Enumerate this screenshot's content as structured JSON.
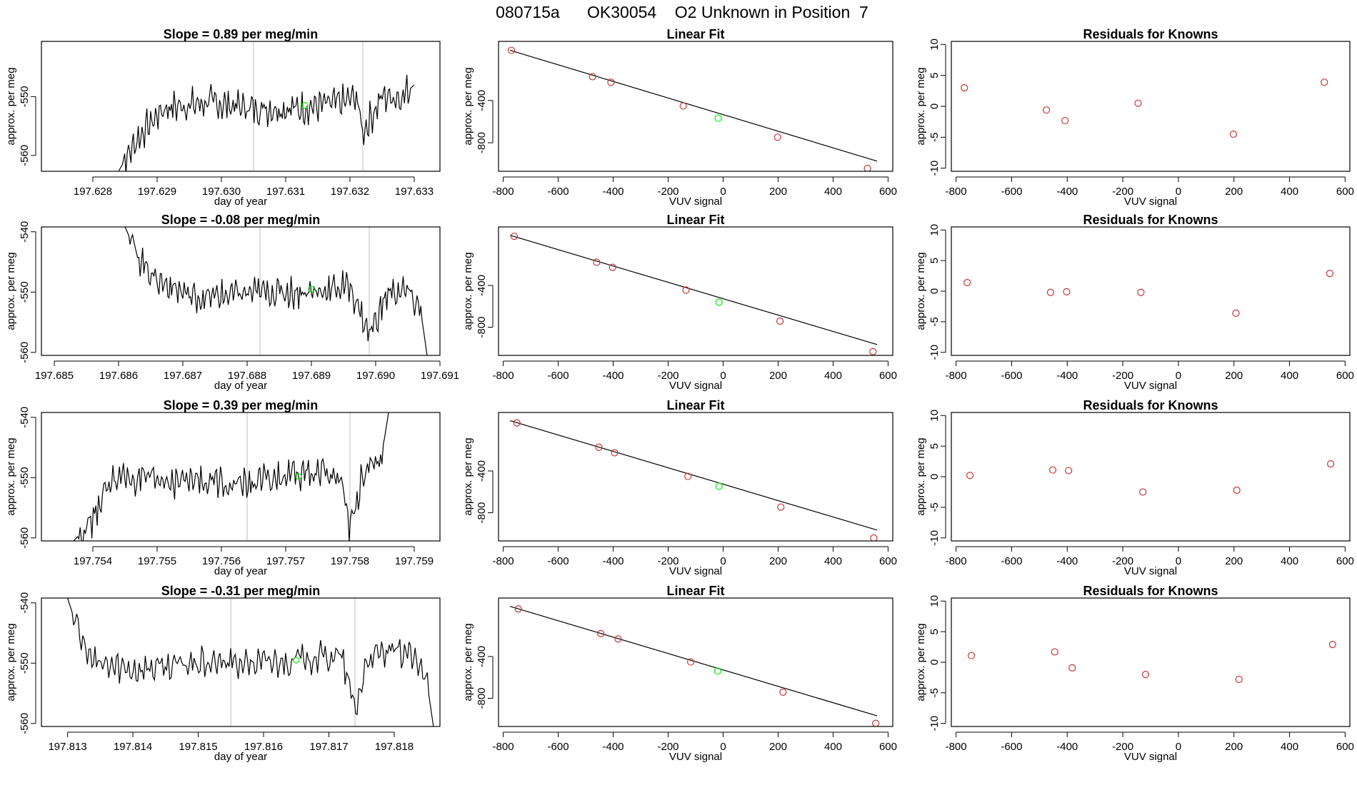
{
  "figure_title": "080715a      OK30054    O2 Unknown in Position  7",
  "colors": {
    "line": "#000000",
    "known": "#cd3333",
    "unknown": "#00ee00",
    "vline": "#bebebe"
  },
  "chart_data": [
    {
      "type": "line",
      "row": 1,
      "col": 1,
      "title": "Slope =  0.89  per meg/min",
      "xlabel": "day of year",
      "ylabel": "approx. per meg",
      "xlim": [
        197.6272,
        197.6334
      ],
      "ylim": [
        -562.7,
        -540.6
      ],
      "xticks": [
        197.628,
        197.629,
        197.63,
        197.631,
        197.632,
        197.633
      ],
      "xtick_labels": [
        "197.628",
        "197.629",
        "197.630",
        "197.631",
        "197.632",
        "197.633"
      ],
      "yticks": [
        -550,
        -560
      ],
      "ytick_labels": [
        "-550",
        "-560"
      ],
      "vlines": [
        197.6305,
        197.6322
      ],
      "unknown_point": {
        "x": 197.6313,
        "y": -551.5
      },
      "series_start": 197.6284,
      "series_end": 197.633,
      "envelope": [
        [
          197.6284,
          -562.7
        ],
        [
          197.6287,
          -557
        ],
        [
          197.6291,
          -552
        ],
        [
          197.6298,
          -551
        ],
        [
          197.6305,
          -552
        ],
        [
          197.6312,
          -552
        ],
        [
          197.6319,
          -551
        ],
        [
          197.6321,
          -550
        ],
        [
          197.6322,
          -556
        ],
        [
          197.6325,
          -550
        ],
        [
          197.6328,
          -550
        ],
        [
          197.633,
          -548
        ],
        [
          197.6334,
          -540.6
        ]
      ],
      "amplitude": 2.4
    },
    {
      "type": "scatter",
      "row": 1,
      "col": 2,
      "title": "Linear Fit",
      "xlabel": "VUV signal",
      "ylabel": "approx. per meg",
      "xlim": [
        -817,
        617
      ],
      "ylim": [
        -1070,
        160
      ],
      "xticks": [
        -800,
        -600,
        -400,
        -200,
        0,
        200,
        400,
        600
      ],
      "xtick_labels": [
        "-800",
        "-600",
        "-400",
        "-200",
        "0",
        "200",
        "400",
        "600"
      ],
      "yticks": [
        -400,
        -800
      ],
      "ytick_labels": [
        "-400",
        "-800"
      ],
      "fit_line": [
        [
          -775,
          76
        ],
        [
          560,
          -974
        ]
      ],
      "known": [
        {
          "x": -770,
          "y": 75
        },
        {
          "x": -475,
          "y": -174
        },
        {
          "x": -408,
          "y": -227
        },
        {
          "x": -145,
          "y": -452
        },
        {
          "x": 198,
          "y": -747
        },
        {
          "x": 525,
          "y": -1043
        }
      ],
      "unknown": [
        {
          "x": -18,
          "y": -567
        }
      ]
    },
    {
      "type": "scatter",
      "row": 1,
      "col": 3,
      "title": "Residuals for Knowns",
      "xlabel": "VUV signal",
      "ylabel": "approx. per meg",
      "xlim": [
        -817,
        617
      ],
      "ylim": [
        -10.5,
        10.5
      ],
      "xticks": [
        -800,
        -600,
        -400,
        -200,
        0,
        200,
        400,
        600
      ],
      "xtick_labels": [
        "-800",
        "-600",
        "-400",
        "-200",
        "0",
        "200",
        "400",
        "600"
      ],
      "yticks": [
        10,
        5,
        0,
        -5,
        -10
      ],
      "ytick_labels": [
        "10",
        "5",
        "0",
        "-5",
        "-10"
      ],
      "known": [
        {
          "x": -770,
          "y": 3.0
        },
        {
          "x": -475,
          "y": -0.6
        },
        {
          "x": -408,
          "y": -2.3
        },
        {
          "x": -145,
          "y": 0.5
        },
        {
          "x": 198,
          "y": -4.5
        },
        {
          "x": 525,
          "y": 3.9
        }
      ]
    },
    {
      "type": "line",
      "row": 2,
      "col": 1,
      "title": "Slope =  -0.08  per meg/min",
      "xlabel": "day of year",
      "ylabel": "approx. per meg",
      "xlim": [
        197.6848,
        197.691
      ],
      "ylim": [
        -560.5,
        -539.2
      ],
      "xticks": [
        197.685,
        197.686,
        197.687,
        197.688,
        197.689,
        197.69,
        197.691
      ],
      "xtick_labels": [
        "197.685",
        "197.686",
        "197.687",
        "197.688",
        "197.689",
        "197.690",
        "197.691"
      ],
      "yticks": [
        -540,
        -550,
        -560
      ],
      "ytick_labels": [
        "-540",
        "-550",
        "-560"
      ],
      "vlines": [
        197.6882,
        197.6899
      ],
      "unknown_point": {
        "x": 197.689,
        "y": -549.5
      },
      "series_start": 197.6861,
      "series_end": 197.6908,
      "envelope": [
        [
          197.6861,
          -539.2
        ],
        [
          197.6863,
          -544
        ],
        [
          197.6866,
          -548
        ],
        [
          197.6872,
          -551
        ],
        [
          197.6882,
          -550
        ],
        [
          197.689,
          -550
        ],
        [
          197.6896,
          -549
        ],
        [
          197.6899,
          -557
        ],
        [
          197.6902,
          -550
        ],
        [
          197.6905,
          -550
        ],
        [
          197.6907,
          -553
        ],
        [
          197.6908,
          -560.5
        ]
      ],
      "amplitude": 2.2
    },
    {
      "type": "scatter",
      "row": 2,
      "col": 2,
      "title": "Linear Fit",
      "xlabel": "VUV signal",
      "ylabel": "approx. per meg",
      "xlim": [
        -817,
        617
      ],
      "ylim": [
        -1070,
        160
      ],
      "xticks": [
        -800,
        -600,
        -400,
        -200,
        0,
        200,
        400,
        600
      ],
      "xtick_labels": [
        "-800",
        "-600",
        "-400",
        "-200",
        "0",
        "200",
        "400",
        "600"
      ],
      "yticks": [
        -400,
        -800
      ],
      "ytick_labels": [
        "-400",
        "-800"
      ],
      "fit_line": [
        [
          -775,
          80
        ],
        [
          560,
          -966
        ]
      ],
      "known": [
        {
          "x": -760,
          "y": 70
        },
        {
          "x": -460,
          "y": -178
        },
        {
          "x": -402,
          "y": -227
        },
        {
          "x": -135,
          "y": -445
        },
        {
          "x": 207,
          "y": -742
        },
        {
          "x": 545,
          "y": -1034
        }
      ],
      "unknown": [
        {
          "x": -15,
          "y": -560
        }
      ]
    },
    {
      "type": "scatter",
      "row": 2,
      "col": 3,
      "title": "Residuals for Knowns",
      "xlabel": "VUV signal",
      "ylabel": "approx. per meg",
      "xlim": [
        -817,
        617
      ],
      "ylim": [
        -10.5,
        10.5
      ],
      "xticks": [
        -800,
        -600,
        -400,
        -200,
        0,
        200,
        400,
        600
      ],
      "xtick_labels": [
        "-800",
        "-600",
        "-400",
        "-200",
        "0",
        "200",
        "400",
        "600"
      ],
      "yticks": [
        10,
        5,
        0,
        -5,
        -10
      ],
      "ytick_labels": [
        "10",
        "5",
        "0",
        "-5",
        "-10"
      ],
      "known": [
        {
          "x": -760,
          "y": 1.4
        },
        {
          "x": -460,
          "y": -0.2
        },
        {
          "x": -402,
          "y": -0.1
        },
        {
          "x": -135,
          "y": -0.2
        },
        {
          "x": 207,
          "y": -3.6
        },
        {
          "x": 545,
          "y": 2.9
        }
      ]
    },
    {
      "type": "line",
      "row": 3,
      "col": 1,
      "title": "Slope =  0.39  per meg/min",
      "xlabel": "day of year",
      "ylabel": "approx. per meg",
      "xlim": [
        197.7532,
        197.7594
      ],
      "ylim": [
        -560.5,
        -539.2
      ],
      "xticks": [
        197.754,
        197.755,
        197.756,
        197.757,
        197.758,
        197.759
      ],
      "xtick_labels": [
        "197.754",
        "197.755",
        "197.756",
        "197.757",
        "197.758",
        "197.759"
      ],
      "yticks": [
        -540,
        -550,
        -560
      ],
      "ytick_labels": [
        "-540",
        "-550",
        "-560"
      ],
      "vlines": [
        197.7564,
        197.758
      ],
      "unknown_point": {
        "x": 197.7572,
        "y": -549.8
      },
      "series_start": 197.7537,
      "series_end": 197.7586,
      "envelope": [
        [
          197.7537,
          -560.5
        ],
        [
          197.754,
          -557
        ],
        [
          197.7543,
          -550
        ],
        [
          197.755,
          -550.5
        ],
        [
          197.7558,
          -550.5
        ],
        [
          197.7564,
          -551
        ],
        [
          197.757,
          -550
        ],
        [
          197.7576,
          -549
        ],
        [
          197.7579,
          -551
        ],
        [
          197.758,
          -559
        ],
        [
          197.7582,
          -549
        ],
        [
          197.7585,
          -546
        ],
        [
          197.7586,
          -539.2
        ]
      ],
      "amplitude": 2.3
    },
    {
      "type": "scatter",
      "row": 3,
      "col": 2,
      "title": "Linear Fit",
      "xlabel": "VUV signal",
      "ylabel": "approx. per meg",
      "xlim": [
        -817,
        617
      ],
      "ylim": [
        -1070,
        160
      ],
      "xticks": [
        -800,
        -600,
        -400,
        -200,
        0,
        200,
        400,
        600
      ],
      "xtick_labels": [
        "-800",
        "-600",
        "-400",
        "-200",
        "0",
        "200",
        "400",
        "600"
      ],
      "yticks": [
        -400,
        -800
      ],
      "ytick_labels": [
        "-400",
        "-800"
      ],
      "fit_line": [
        [
          -775,
          82
        ],
        [
          560,
          -966
        ]
      ],
      "known": [
        {
          "x": -750,
          "y": 60
        },
        {
          "x": -452,
          "y": -173
        },
        {
          "x": -395,
          "y": -226
        },
        {
          "x": -128,
          "y": -452
        },
        {
          "x": 210,
          "y": -746
        },
        {
          "x": 548,
          "y": -1042
        }
      ],
      "unknown": [
        {
          "x": -15,
          "y": -546
        }
      ]
    },
    {
      "type": "scatter",
      "row": 3,
      "col": 3,
      "title": "Residuals for Knowns",
      "xlabel": "VUV signal",
      "ylabel": "approx. per meg",
      "xlim": [
        -817,
        617
      ],
      "ylim": [
        -10.5,
        10.5
      ],
      "xticks": [
        -800,
        -600,
        -400,
        -200,
        0,
        200,
        400,
        600
      ],
      "xtick_labels": [
        "-800",
        "-600",
        "-400",
        "-200",
        "0",
        "200",
        "400",
        "600"
      ],
      "yticks": [
        10,
        5,
        0,
        -5,
        -10
      ],
      "ytick_labels": [
        "10",
        "5",
        "0",
        "-5",
        "-10"
      ],
      "known": [
        {
          "x": -750,
          "y": 0.2
        },
        {
          "x": -452,
          "y": 1.1
        },
        {
          "x": -395,
          "y": 1.0
        },
        {
          "x": -128,
          "y": -2.5
        },
        {
          "x": 210,
          "y": -2.2
        },
        {
          "x": 548,
          "y": 2.1
        }
      ]
    },
    {
      "type": "line",
      "row": 4,
      "col": 1,
      "title": "Slope =  -0.31  per meg/min",
      "xlabel": "day of year",
      "ylabel": "approx. per meg",
      "xlim": [
        197.8126,
        197.8187
      ],
      "ylim": [
        -560.5,
        -539.2
      ],
      "xticks": [
        197.813,
        197.814,
        197.815,
        197.816,
        197.817,
        197.818
      ],
      "xtick_labels": [
        "197.813",
        "197.814",
        "197.815",
        "197.816",
        "197.817",
        "197.818"
      ],
      "yticks": [
        -540,
        -550,
        -560
      ],
      "ytick_labels": [
        "-540",
        "-550",
        "-560"
      ],
      "vlines": [
        197.8155,
        197.8174
      ],
      "unknown_point": {
        "x": 197.8165,
        "y": -549.5
      },
      "series_start": 197.813,
      "series_end": 197.8186,
      "envelope": [
        [
          197.813,
          -539.2
        ],
        [
          197.8132,
          -546
        ],
        [
          197.8134,
          -550
        ],
        [
          197.814,
          -551
        ],
        [
          197.815,
          -550
        ],
        [
          197.816,
          -550
        ],
        [
          197.8168,
          -549
        ],
        [
          197.8172,
          -549
        ],
        [
          197.8174,
          -558
        ],
        [
          197.8176,
          -549
        ],
        [
          197.8182,
          -548
        ],
        [
          197.8185,
          -553
        ],
        [
          197.8186,
          -560.5
        ]
      ],
      "amplitude": 2.2
    },
    {
      "type": "scatter",
      "row": 4,
      "col": 2,
      "title": "Linear Fit",
      "xlabel": "VUV signal",
      "ylabel": "approx. per meg",
      "xlim": [
        -817,
        617
      ],
      "ylim": [
        -1070,
        160
      ],
      "xticks": [
        -800,
        -600,
        -400,
        -200,
        0,
        200,
        400,
        600
      ],
      "xtick_labels": [
        "-800",
        "-600",
        "-400",
        "-200",
        "0",
        "200",
        "400",
        "600"
      ],
      "yticks": [
        -400,
        -800
      ],
      "ytick_labels": [
        "-400",
        "-800"
      ],
      "fit_line": [
        [
          -775,
          80
        ],
        [
          560,
          -968
        ]
      ],
      "known": [
        {
          "x": -745,
          "y": 56
        },
        {
          "x": -445,
          "y": -181
        },
        {
          "x": -382,
          "y": -232
        },
        {
          "x": -118,
          "y": -452
        },
        {
          "x": 218,
          "y": -742
        },
        {
          "x": 555,
          "y": -1040
        }
      ],
      "unknown": [
        {
          "x": -20,
          "y": -540
        }
      ]
    },
    {
      "type": "scatter",
      "row": 4,
      "col": 3,
      "title": "Residuals for Knowns",
      "xlabel": "VUV signal",
      "ylabel": "approx. per meg",
      "xlim": [
        -817,
        617
      ],
      "ylim": [
        -10.5,
        10.5
      ],
      "xticks": [
        -800,
        -600,
        -400,
        -200,
        0,
        200,
        400,
        600
      ],
      "xtick_labels": [
        "-800",
        "-600",
        "-400",
        "-200",
        "0",
        "200",
        "400",
        "600"
      ],
      "yticks": [
        10,
        5,
        0,
        -5,
        -10
      ],
      "ytick_labels": [
        "10",
        "5",
        "0",
        "-5",
        "-10"
      ],
      "known": [
        {
          "x": -745,
          "y": 1.1
        },
        {
          "x": -445,
          "y": 1.7
        },
        {
          "x": -382,
          "y": -0.9
        },
        {
          "x": -118,
          "y": -2.0
        },
        {
          "x": 218,
          "y": -2.8
        },
        {
          "x": 555,
          "y": 2.9
        }
      ]
    }
  ]
}
